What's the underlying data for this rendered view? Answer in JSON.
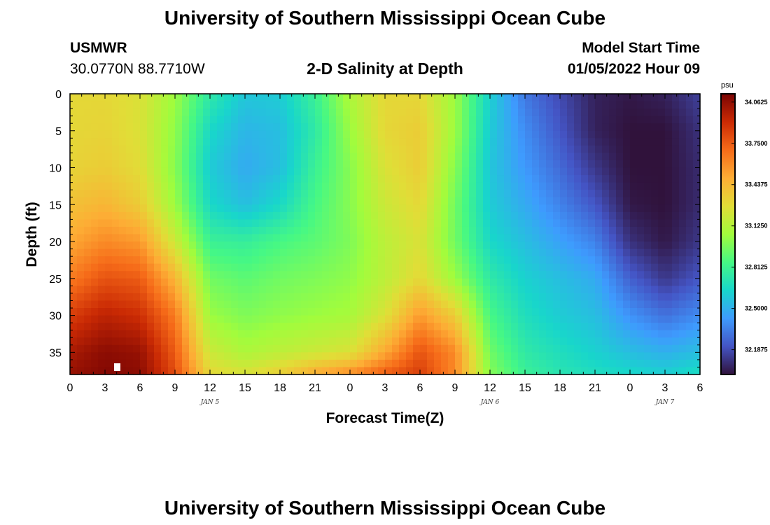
{
  "header": {
    "title": "University of Southern Mississippi Ocean Cube",
    "station_id": "USMWR",
    "station_coords": "30.0770N  88.7710W",
    "plot_title": "2-D Salinity at Depth",
    "model_start_label": "Model Start Time",
    "model_start_value": "01/05/2022 Hour 09"
  },
  "footer": {
    "title": "University of Southern Mississippi Ocean Cube"
  },
  "colors": {
    "ramp": [
      "#30123b",
      "#4454c4",
      "#3e9bfe",
      "#18d6cb",
      "#46f884",
      "#a2fc3c",
      "#e1dd37",
      "#fdad35",
      "#f66b19",
      "#ca2a04",
      "#7a0403"
    ]
  },
  "chart_data": {
    "type": "heatmap",
    "title": "2-D Salinity at Depth",
    "xlabel": "Forecast Time(Z)",
    "ylabel": "Depth (ft)",
    "x_hours_from_jan4_00z": [
      0,
      3,
      6,
      9,
      12,
      15,
      18,
      21,
      24,
      27,
      30,
      33,
      36,
      39,
      42,
      45,
      48,
      51,
      54
    ],
    "x_tick_labels": [
      "0",
      "3",
      "6",
      "9",
      "12",
      "15",
      "18",
      "21",
      "0",
      "3",
      "6",
      "9",
      "12",
      "15",
      "18",
      "21",
      "0",
      "3",
      "6"
    ],
    "x_day_labels": [
      {
        "label": "JAN 5",
        "at_hour": 12
      },
      {
        "label": "JAN 6",
        "at_hour": 36
      },
      {
        "label": "JAN 7",
        "at_hour": 51
      }
    ],
    "y_depths_ft": [
      0,
      5,
      10,
      15,
      20,
      25,
      30,
      35
    ],
    "y_tick_labels": [
      "0",
      "5",
      "10",
      "15",
      "20",
      "25",
      "30",
      "35"
    ],
    "ylim": [
      0,
      38
    ],
    "y_inverted": true,
    "colorbar": {
      "unit": "psu",
      "min": 32.0,
      "max": 34.125,
      "tick_labels": [
        "34.0625",
        "33.7500",
        "33.4375",
        "33.1250",
        "32.8125",
        "32.5000",
        "32.1875"
      ],
      "tick_values": [
        34.0625,
        33.75,
        33.4375,
        33.125,
        32.8125,
        32.5,
        32.1875
      ]
    },
    "salinity_psu": {
      "depths_ft": [
        0,
        5,
        10,
        15,
        20,
        25,
        30,
        35,
        38
      ],
      "rows": [
        {
          "hour": 0,
          "values": [
            33.3,
            33.3,
            33.32,
            33.4,
            33.5,
            33.65,
            33.85,
            34.0,
            34.05
          ]
        },
        {
          "hour": 3,
          "values": [
            33.3,
            33.32,
            33.35,
            33.45,
            33.6,
            33.78,
            33.95,
            34.08,
            34.1
          ]
        },
        {
          "hour": 6,
          "values": [
            33.25,
            33.25,
            33.28,
            33.35,
            33.55,
            33.75,
            33.9,
            34.05,
            34.08
          ]
        },
        {
          "hour": 9,
          "values": [
            33.05,
            33.02,
            33.0,
            33.05,
            33.2,
            33.45,
            33.65,
            33.75,
            33.8
          ]
        },
        {
          "hour": 12,
          "values": [
            32.75,
            32.65,
            32.6,
            32.65,
            32.8,
            32.95,
            33.05,
            33.2,
            33.3
          ]
        },
        {
          "hour": 15,
          "values": [
            32.58,
            32.52,
            32.48,
            32.55,
            32.78,
            32.9,
            32.98,
            33.1,
            33.25
          ]
        },
        {
          "hour": 18,
          "values": [
            32.6,
            32.55,
            32.55,
            32.65,
            32.85,
            32.95,
            33.02,
            33.15,
            33.35
          ]
        },
        {
          "hour": 21,
          "values": [
            32.8,
            32.75,
            32.8,
            32.85,
            32.9,
            32.98,
            33.05,
            33.2,
            33.5
          ]
        },
        {
          "hour": 24,
          "values": [
            33.1,
            33.05,
            33.0,
            33.0,
            32.98,
            33.02,
            33.08,
            33.25,
            33.6
          ]
        },
        {
          "hour": 27,
          "values": [
            33.3,
            33.3,
            33.25,
            33.2,
            33.15,
            33.15,
            33.25,
            33.5,
            33.75
          ]
        },
        {
          "hour": 30,
          "values": [
            33.3,
            33.35,
            33.35,
            33.3,
            33.25,
            33.3,
            33.55,
            33.78,
            33.85
          ]
        },
        {
          "hour": 33,
          "values": [
            33.05,
            33.05,
            33.0,
            32.95,
            32.95,
            33.05,
            33.35,
            33.6,
            33.6
          ]
        },
        {
          "hour": 36,
          "values": [
            32.62,
            32.6,
            32.58,
            32.6,
            32.65,
            32.75,
            32.85,
            32.95,
            33.0
          ]
        },
        {
          "hour": 39,
          "values": [
            32.32,
            32.38,
            32.42,
            32.48,
            32.55,
            32.62,
            32.68,
            32.75,
            32.8
          ]
        },
        {
          "hour": 42,
          "values": [
            32.18,
            32.22,
            32.28,
            32.35,
            32.45,
            32.55,
            32.6,
            32.68,
            32.72
          ]
        },
        {
          "hour": 45,
          "values": [
            32.05,
            32.05,
            32.12,
            32.22,
            32.35,
            32.48,
            32.55,
            32.62,
            32.68
          ]
        },
        {
          "hour": 48,
          "values": [
            32.02,
            32.0,
            32.0,
            32.02,
            32.1,
            32.25,
            32.4,
            32.55,
            32.65
          ]
        },
        {
          "hour": 51,
          "values": [
            32.05,
            32.0,
            32.0,
            32.0,
            32.02,
            32.12,
            32.3,
            32.5,
            32.62
          ]
        },
        {
          "hour": 54,
          "values": [
            32.15,
            32.1,
            32.08,
            32.08,
            32.12,
            32.22,
            32.38,
            32.55,
            32.68
          ]
        }
      ]
    }
  }
}
